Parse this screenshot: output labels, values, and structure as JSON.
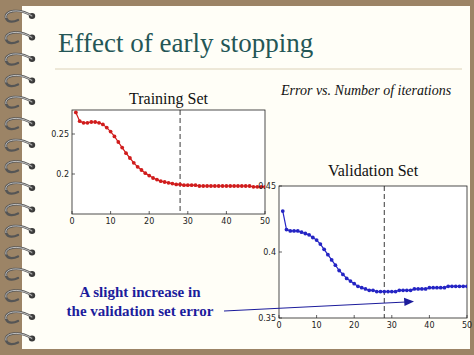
{
  "slide": {
    "title": "Effect of early stopping",
    "subtitle": "Error vs. Number of iterations",
    "annotation": [
      "A slight increase in",
      "the validation set error"
    ]
  },
  "chart_data": [
    {
      "type": "line",
      "title": "Training Set",
      "x": [
        1,
        2,
        3,
        4,
        5,
        6,
        7,
        8,
        9,
        10,
        11,
        12,
        13,
        14,
        15,
        16,
        17,
        18,
        19,
        20,
        21,
        22,
        23,
        24,
        25,
        26,
        27,
        28,
        29,
        30,
        31,
        32,
        33,
        34,
        35,
        36,
        37,
        38,
        39,
        40,
        41,
        42,
        43,
        44,
        45,
        46,
        47,
        48,
        49,
        50
      ],
      "series": [
        {
          "color": "#d01c1c",
          "marker": "circle",
          "values": [
            0.277,
            0.266,
            0.264,
            0.264,
            0.265,
            0.265,
            0.264,
            0.262,
            0.258,
            0.253,
            0.247,
            0.24,
            0.233,
            0.226,
            0.22,
            0.214,
            0.209,
            0.205,
            0.201,
            0.198,
            0.195,
            0.193,
            0.191,
            0.19,
            0.189,
            0.188,
            0.187,
            0.187,
            0.186,
            0.186,
            0.186,
            0.186,
            0.185,
            0.185,
            0.185,
            0.185,
            0.185,
            0.185,
            0.185,
            0.185,
            0.185,
            0.185,
            0.185,
            0.185,
            0.185,
            0.185,
            0.184,
            0.184,
            0.184,
            0.184
          ]
        }
      ],
      "xlim": [
        0,
        50
      ],
      "xticks": [
        0,
        10,
        20,
        30,
        40,
        50
      ],
      "ylim": [
        0.15,
        0.28
      ],
      "yticks": [
        0.2,
        0.25
      ],
      "stop_iteration": 28
    },
    {
      "type": "line",
      "title": "Validation Set",
      "x": [
        1,
        2,
        3,
        4,
        5,
        6,
        7,
        8,
        9,
        10,
        11,
        12,
        13,
        14,
        15,
        16,
        17,
        18,
        19,
        20,
        21,
        22,
        23,
        24,
        25,
        26,
        27,
        28,
        29,
        30,
        31,
        32,
        33,
        34,
        35,
        36,
        37,
        38,
        39,
        40,
        41,
        42,
        43,
        44,
        45,
        46,
        47,
        48,
        49,
        50
      ],
      "series": [
        {
          "color": "#2424c4",
          "marker": "circle",
          "values": [
            0.431,
            0.417,
            0.416,
            0.416,
            0.416,
            0.415,
            0.414,
            0.413,
            0.411,
            0.409,
            0.406,
            0.402,
            0.398,
            0.394,
            0.39,
            0.386,
            0.383,
            0.38,
            0.378,
            0.376,
            0.374,
            0.373,
            0.372,
            0.371,
            0.371,
            0.37,
            0.37,
            0.37,
            0.37,
            0.37,
            0.37,
            0.371,
            0.371,
            0.371,
            0.371,
            0.372,
            0.372,
            0.372,
            0.372,
            0.373,
            0.373,
            0.373,
            0.373,
            0.373,
            0.374,
            0.374,
            0.374,
            0.374,
            0.374,
            0.374
          ]
        }
      ],
      "xlim": [
        0,
        50
      ],
      "xticks": [
        0,
        10,
        20,
        30,
        40,
        50
      ],
      "ylim": [
        0.35,
        0.45
      ],
      "yticks": [
        0.35,
        0.4,
        0.45
      ],
      "stop_iteration": 28
    }
  ]
}
